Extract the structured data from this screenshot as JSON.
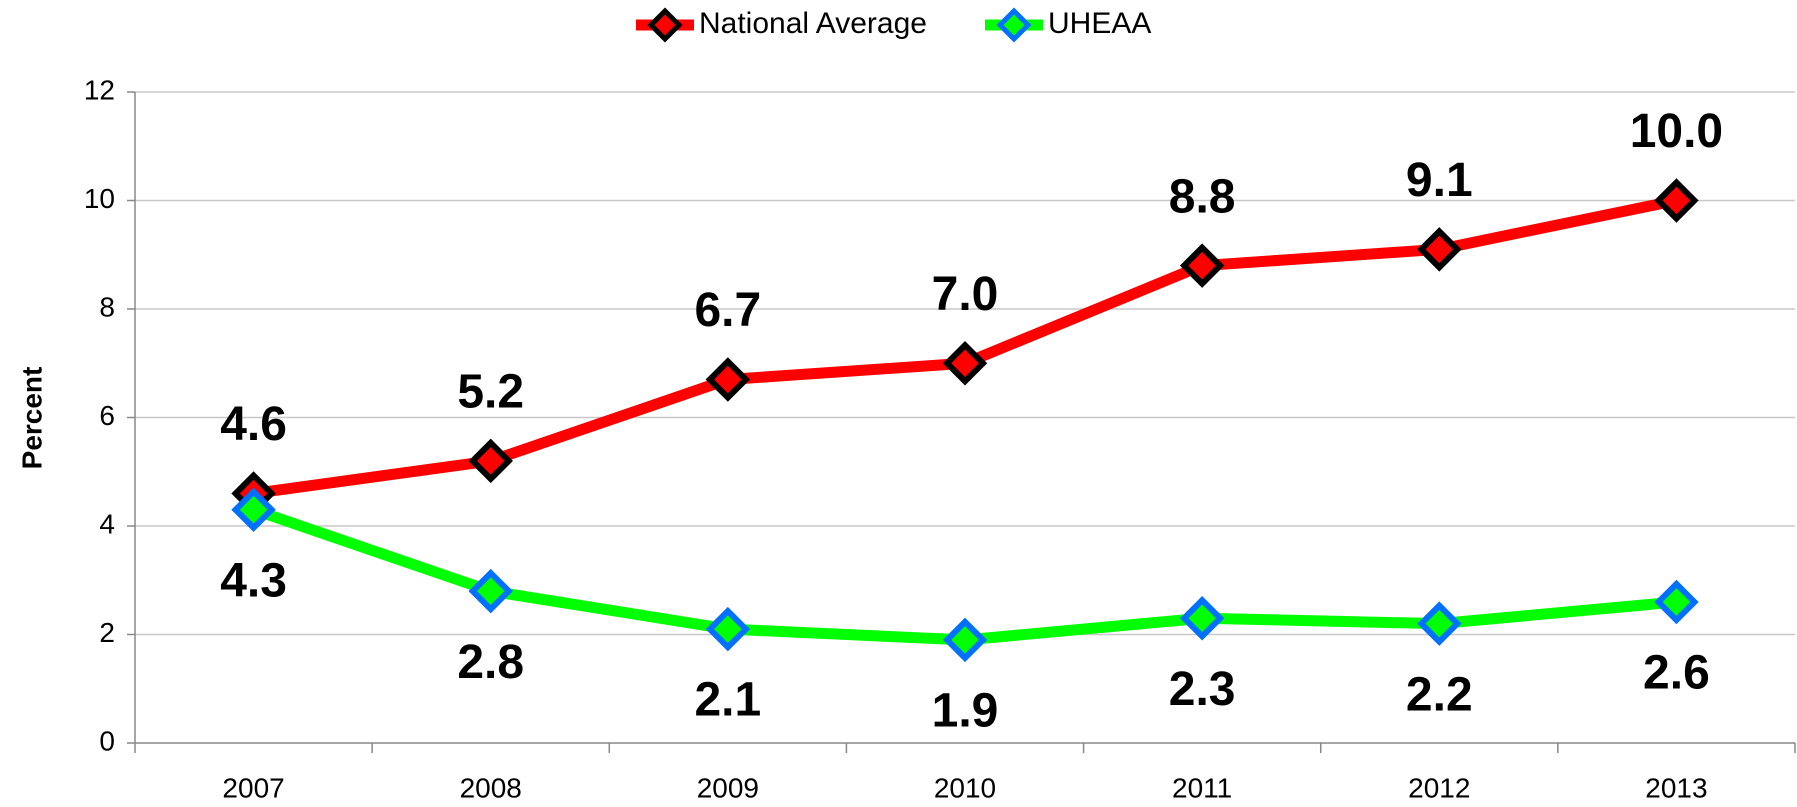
{
  "chart_data": {
    "type": "line",
    "y_label": "Percent",
    "categories": [
      "2007",
      "2008",
      "2009",
      "2010",
      "2011",
      "2012",
      "2013"
    ],
    "series": [
      {
        "name": "National Average",
        "color": "#ff0000",
        "marker_color": "#000000",
        "values": [
          4.6,
          5.2,
          6.7,
          7.0,
          8.8,
          9.1,
          10.0
        ],
        "value_labels": [
          "4.6",
          "5.2",
          "6.7",
          "7.0",
          "8.8",
          "9.1",
          "10.0"
        ]
      },
      {
        "name": "UHEAA",
        "color": "#00ff00",
        "marker_color": "#0070ff",
        "values": [
          4.3,
          2.8,
          2.1,
          1.9,
          2.3,
          2.2,
          2.6
        ],
        "value_labels": [
          "4.3",
          "2.8",
          "2.1",
          "1.9",
          "2.3",
          "2.2",
          "2.6"
        ]
      }
    ],
    "ylim": [
      0,
      12
    ],
    "yticks": [
      0,
      2,
      4,
      6,
      8,
      10,
      12
    ],
    "grid": true,
    "legend": "top"
  }
}
